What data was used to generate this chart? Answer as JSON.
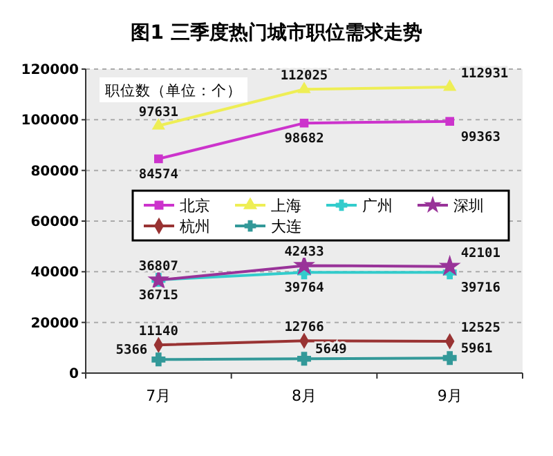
{
  "chart_data": {
    "type": "line",
    "title": "图1  三季度热门城市职位需求走势",
    "annotations": [
      "职位数（单位：个）"
    ],
    "categories": [
      "7月",
      "8月",
      "9月"
    ],
    "series": [
      {
        "name": "北京",
        "color": "#cc33cc",
        "marker": "square",
        "values": [
          84574,
          98682,
          99363
        ]
      },
      {
        "name": "上海",
        "color": "#eeee55",
        "marker": "triangle",
        "values": [
          97631,
          112025,
          112931
        ]
      },
      {
        "name": "广州",
        "color": "#33cccc",
        "marker": "cross",
        "values": [
          36807,
          39764,
          39716
        ]
      },
      {
        "name": "深圳",
        "color": "#993399",
        "marker": "star",
        "values": [
          36715,
          42433,
          42101
        ]
      },
      {
        "name": "杭州",
        "color": "#993333",
        "marker": "diamond",
        "values": [
          11140,
          12766,
          12525
        ]
      },
      {
        "name": "大连",
        "color": "#339999",
        "marker": "cross",
        "values": [
          5366,
          5649,
          5961
        ]
      }
    ],
    "ylim": [
      0,
      120000
    ],
    "yticks": [
      0,
      20000,
      40000,
      60000,
      80000,
      100000,
      120000
    ],
    "grid": "y",
    "legend": "center",
    "data_labels": true
  }
}
